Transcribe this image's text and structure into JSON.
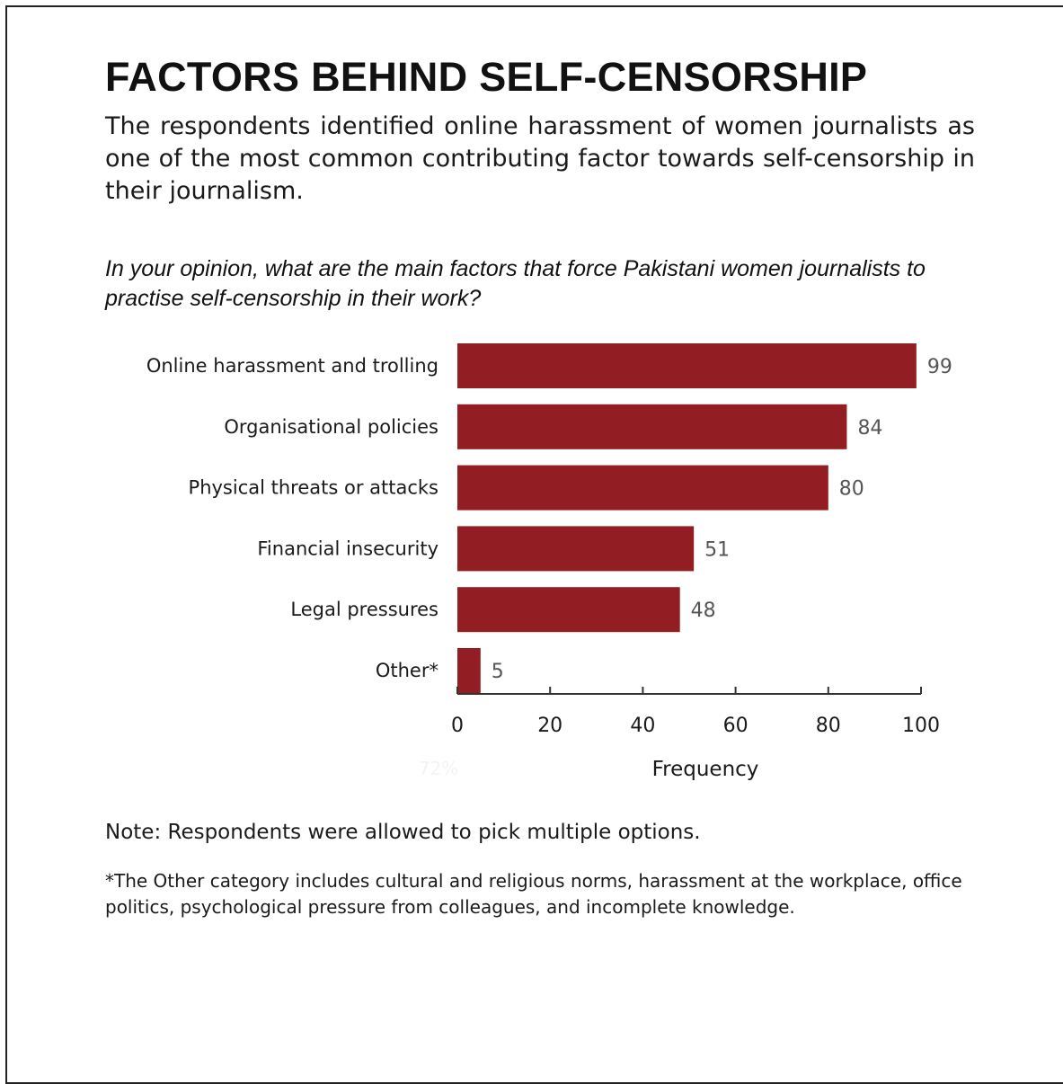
{
  "header": {
    "title": "FACTORS BEHIND SELF-CENSORSHIP",
    "intro": "The respondents identified online harassment of women journalists as one of the most common contributing factor towards self-censorship in their journalism.",
    "question": "In your opinion, what are the main factors that force Pakistani women journalists to practise self-censorship in their work?"
  },
  "chart_data": {
    "type": "bar",
    "orientation": "horizontal",
    "categories": [
      "Online harassment and trolling",
      "Organisational policies",
      "Physical threats or  attacks",
      "Financial insecurity",
      "Legal pressures",
      "Other*"
    ],
    "values": [
      99,
      84,
      80,
      51,
      48,
      5
    ],
    "xlabel": "Frequency",
    "xlim": [
      0,
      100
    ],
    "xticks": [
      "0",
      "20",
      "40",
      "60",
      "80",
      "100"
    ],
    "bar_color": "#921d22",
    "faint_annotation": "72%"
  },
  "footer": {
    "note": "Note: Respondents were allowed to pick multiple options.",
    "footnote": "*The Other category includes cultural and religious norms, harassment at the workplace, office politics, psychological pressure from colleagues, and incomplete knowledge."
  }
}
